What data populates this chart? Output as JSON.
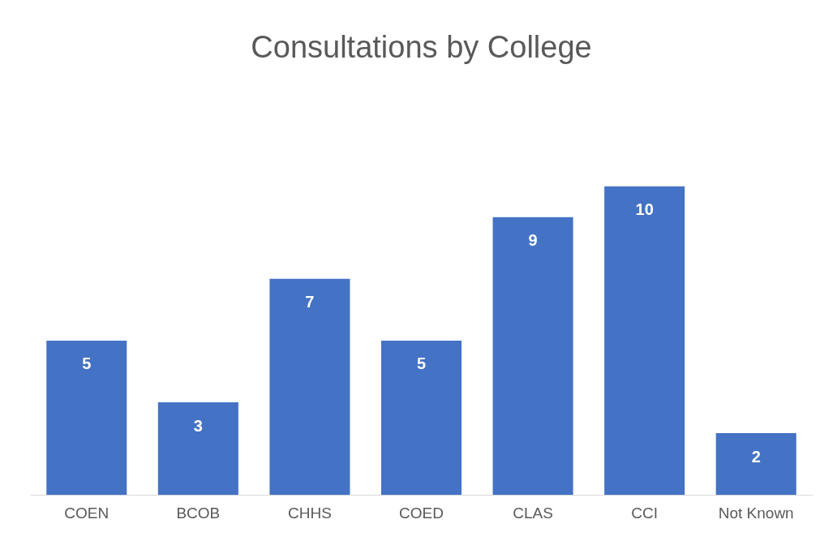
{
  "chart_data": {
    "type": "bar",
    "title": "Consultations by College",
    "categories": [
      "COEN",
      "BCOB",
      "CHHS",
      "COED",
      "CLAS",
      "CCI",
      "Not Known"
    ],
    "values": [
      5,
      3,
      7,
      5,
      9,
      10,
      2
    ],
    "color": "#4472c4",
    "data_labels": true,
    "grid": false,
    "legend": false
  }
}
